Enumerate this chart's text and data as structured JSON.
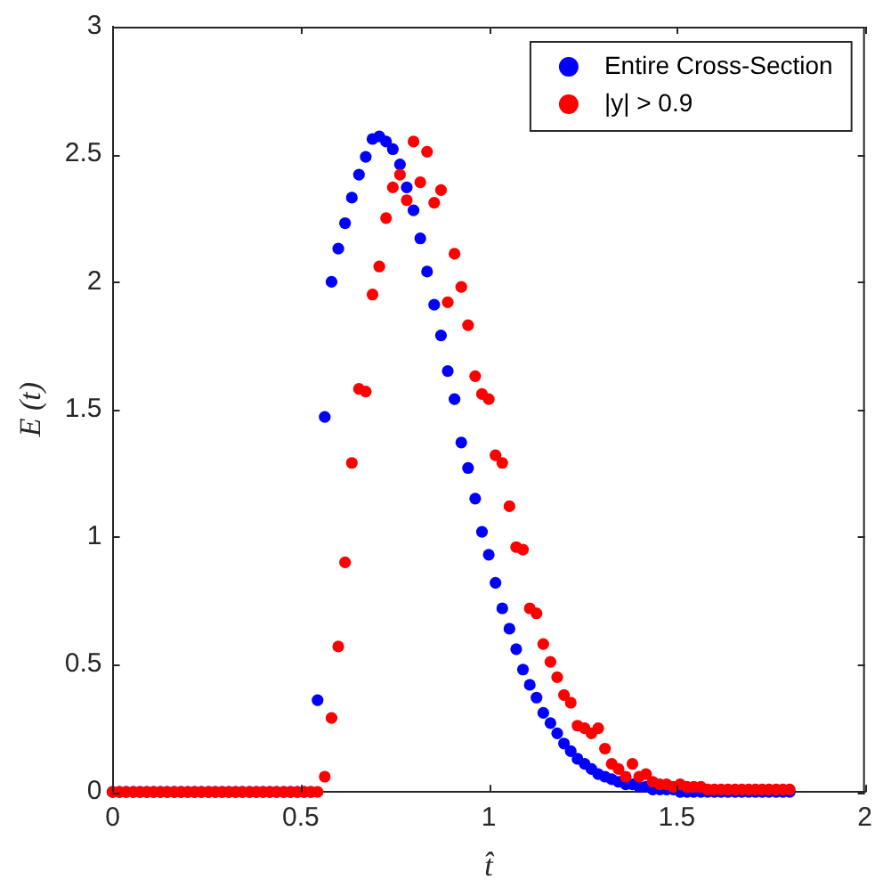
{
  "chart_data": {
    "type": "scatter",
    "xlabel": "t̂",
    "ylabel": "E (t)",
    "xlim": [
      0,
      2
    ],
    "xticks": [
      0,
      0.5,
      1,
      1.5,
      2
    ],
    "ylim": [
      0,
      3
    ],
    "yticks": [
      0,
      0.5,
      1,
      1.5,
      2,
      2.5,
      3
    ],
    "grid": false,
    "legend": "top right",
    "marker": "circle",
    "x": [
      0,
      0.018,
      0.036,
      0.055,
      0.073,
      0.091,
      0.109,
      0.127,
      0.145,
      0.164,
      0.182,
      0.2,
      0.218,
      0.236,
      0.255,
      0.273,
      0.291,
      0.309,
      0.327,
      0.345,
      0.364,
      0.382,
      0.4,
      0.418,
      0.436,
      0.455,
      0.473,
      0.491,
      0.509,
      0.527,
      0.545,
      0.564,
      0.582,
      0.6,
      0.618,
      0.636,
      0.655,
      0.673,
      0.691,
      0.709,
      0.727,
      0.745,
      0.764,
      0.782,
      0.8,
      0.818,
      0.836,
      0.855,
      0.873,
      0.891,
      0.909,
      0.927,
      0.945,
      0.964,
      0.982,
      1.0,
      1.018,
      1.036,
      1.055,
      1.073,
      1.091,
      1.109,
      1.127,
      1.145,
      1.164,
      1.182,
      1.2,
      1.218,
      1.236,
      1.255,
      1.273,
      1.291,
      1.309,
      1.327,
      1.345,
      1.364,
      1.382,
      1.4,
      1.418,
      1.436,
      1.455,
      1.473,
      1.491,
      1.509,
      1.527,
      1.545,
      1.564,
      1.582,
      1.6,
      1.618,
      1.636,
      1.655,
      1.673,
      1.691,
      1.709,
      1.727,
      1.745,
      1.764,
      1.782,
      1.8
    ],
    "series": [
      {
        "name": "Entire Cross-Section",
        "color": "#0000ff",
        "values": [
          0,
          0,
          0,
          0,
          0,
          0,
          0,
          0,
          0,
          0,
          0,
          0,
          0,
          0,
          0,
          0,
          0,
          0,
          0,
          0,
          0,
          0,
          0,
          0,
          0,
          0,
          0,
          0,
          0,
          0,
          0.36,
          1.47,
          2.0,
          2.13,
          2.23,
          2.33,
          2.42,
          2.49,
          2.56,
          2.57,
          2.55,
          2.52,
          2.46,
          2.37,
          2.28,
          2.17,
          2.04,
          1.91,
          1.79,
          1.65,
          1.54,
          1.37,
          1.27,
          1.15,
          1.02,
          0.93,
          0.82,
          0.72,
          0.64,
          0.56,
          0.48,
          0.42,
          0.37,
          0.31,
          0.27,
          0.23,
          0.19,
          0.16,
          0.13,
          0.11,
          0.09,
          0.07,
          0.06,
          0.05,
          0.04,
          0.03,
          0.03,
          0.02,
          0.02,
          0.01,
          0.01,
          0.01,
          0.01,
          0,
          0,
          0,
          0,
          0,
          0,
          0,
          0,
          0,
          0,
          0,
          0,
          0,
          0,
          0,
          0,
          0
        ]
      },
      {
        "name": "|y| > 0.9",
        "color": "#ff0000",
        "values": [
          0,
          0,
          0,
          0,
          0,
          0,
          0,
          0,
          0,
          0,
          0,
          0,
          0,
          0,
          0,
          0,
          0,
          0,
          0,
          0,
          0,
          0,
          0,
          0,
          0,
          0,
          0,
          0,
          0,
          0,
          0,
          0.06,
          0.29,
          0.57,
          0.9,
          1.29,
          1.58,
          1.57,
          1.95,
          2.06,
          2.25,
          2.37,
          2.42,
          2.32,
          2.55,
          2.39,
          2.51,
          2.31,
          2.36,
          1.92,
          2.11,
          1.98,
          1.83,
          1.63,
          1.56,
          1.54,
          1.32,
          1.29,
          1.12,
          0.96,
          0.95,
          0.72,
          0.7,
          0.58,
          0.51,
          0.45,
          0.38,
          0.35,
          0.26,
          0.25,
          0.23,
          0.25,
          0.17,
          0.11,
          0.09,
          0.06,
          0.11,
          0.06,
          0.07,
          0.04,
          0.03,
          0.03,
          0.02,
          0.03,
          0.02,
          0.02,
          0.02,
          0.01,
          0.01,
          0.01,
          0.01,
          0.01,
          0.01,
          0.01,
          0.01,
          0.01,
          0.01,
          0.01,
          0.01,
          0.01
        ]
      }
    ]
  }
}
